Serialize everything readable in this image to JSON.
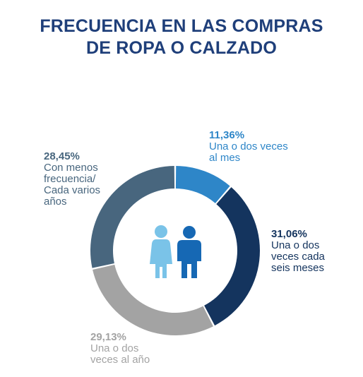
{
  "title": {
    "line1": "FRECUENCIA EN LAS COMPRAS",
    "line2": "DE ROPA O CALZADO"
  },
  "colors": {
    "title": "#1f3f7a",
    "woman_icon": "#7ac3e8",
    "man_icon": "#1668b4"
  },
  "icons": {
    "center": [
      "woman-icon",
      "man-icon"
    ]
  },
  "chart_data": {
    "type": "pie",
    "variant": "donut",
    "title": "FRECUENCIA EN LAS COMPRAS DE ROPA O CALZADO",
    "unit": "%",
    "slices": [
      {
        "label_pct": "11,36%",
        "label": "Una o dos veces\nal mes",
        "value": 11.36,
        "color": "#2e86c8"
      },
      {
        "label_pct": "31,06%",
        "label": "Una o dos\nveces cada\nseis meses",
        "value": 31.06,
        "color": "#14345e"
      },
      {
        "label_pct": "29,13%",
        "label": "Una o dos\nveces al año",
        "value": 29.13,
        "color": "#a3a3a3"
      },
      {
        "label_pct": "28,45%",
        "label": "Con menos\nfrecuencia/\nCada varios\naños",
        "value": 28.45,
        "color": "#48667e"
      }
    ]
  }
}
